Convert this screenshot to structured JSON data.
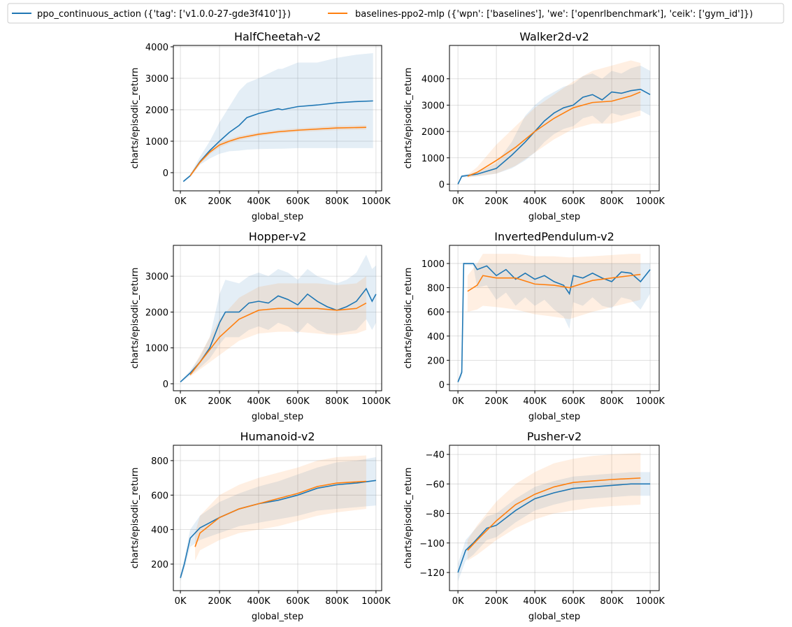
{
  "colors": {
    "ppo": "#1f77b4",
    "baselines": "#ff7f0e"
  },
  "legend": {
    "placement": "top",
    "items": [
      {
        "label": "ppo_continuous_action ({'tag': ['v1.0.0-27-gde3f410']})",
        "color": "#1f77b4"
      },
      {
        "label": "baselines-ppo2-mlp ({'wpn': ['baselines'], 'we': ['openrlbenchmark'], 'ceik': ['gym_id']})",
        "color": "#ff7f0e"
      }
    ]
  },
  "chart_data": [
    {
      "type": "line",
      "title": "HalfCheetah-v2",
      "xlabel": "global_step",
      "ylabel": "charts/episodic_return",
      "grid": true,
      "xlim": [
        -36000,
        1029000
      ],
      "ylim": [
        -578,
        4044
      ],
      "xticks": [
        0,
        200000,
        400000,
        600000,
        800000,
        1000000
      ],
      "xtick_labels": [
        "0K",
        "200K",
        "400K",
        "600K",
        "800K",
        "1000K"
      ],
      "yticks": [
        0,
        1000,
        2000,
        3000,
        4000
      ],
      "ytick_labels": [
        "0",
        "1000",
        "2000",
        "3000",
        "4000"
      ],
      "series": [
        {
          "name": "ppo_continuous_action",
          "x": [
            15000,
            50000,
            100000,
            150000,
            200000,
            250000,
            300000,
            340000,
            400000,
            500000,
            520000,
            600000,
            700000,
            800000,
            900000,
            985000
          ],
          "mean": [
            -280,
            -100,
            350,
            700,
            1000,
            1280,
            1500,
            1750,
            1880,
            2030,
            2000,
            2100,
            2150,
            2220,
            2260,
            2280
          ],
          "lower": [
            -320,
            -140,
            250,
            450,
            600,
            680,
            700,
            730,
            750,
            760,
            760,
            780,
            780,
            780,
            780,
            780
          ],
          "upper": [
            -250,
            -60,
            500,
            1000,
            1600,
            2100,
            2600,
            2850,
            3000,
            3300,
            3300,
            3500,
            3500,
            3650,
            3750,
            3800
          ]
        },
        {
          "name": "baselines-ppo2-mlp",
          "x": [
            50000,
            100000,
            150000,
            200000,
            250000,
            300000,
            400000,
            500000,
            600000,
            800000,
            950000
          ],
          "mean": [
            -100,
            330,
            650,
            880,
            1000,
            1100,
            1220,
            1300,
            1350,
            1420,
            1440
          ],
          "lower": [
            -150,
            270,
            580,
            800,
            930,
            1030,
            1160,
            1240,
            1290,
            1350,
            1370
          ],
          "upper": [
            -50,
            390,
            720,
            960,
            1070,
            1170,
            1280,
            1360,
            1410,
            1490,
            1510
          ]
        }
      ]
    },
    {
      "type": "line",
      "title": "Walker2d-v2",
      "xlabel": "global_step",
      "ylabel": "charts/episodic_return",
      "grid": true,
      "xlim": [
        -44000,
        1047000
      ],
      "ylim": [
        -253,
        5266
      ],
      "xticks": [
        0,
        200000,
        400000,
        600000,
        800000,
        1000000
      ],
      "xtick_labels": [
        "0K",
        "200K",
        "400K",
        "600K",
        "800K",
        "1000K"
      ],
      "yticks": [
        0,
        1000,
        2000,
        3000,
        4000
      ],
      "ytick_labels": [
        "0",
        "1000",
        "2000",
        "3000",
        "4000"
      ],
      "series": [
        {
          "name": "ppo_continuous_action",
          "x": [
            0,
            20000,
            100000,
            200000,
            280000,
            350000,
            400000,
            450000,
            500000,
            550000,
            600000,
            650000,
            700000,
            750000,
            800000,
            850000,
            900000,
            950000,
            1000000
          ],
          "mean": [
            0,
            300,
            380,
            600,
            1100,
            1600,
            2000,
            2400,
            2700,
            2900,
            3000,
            3300,
            3400,
            3200,
            3500,
            3450,
            3550,
            3600,
            3400
          ],
          "lower": [
            0,
            250,
            300,
            400,
            600,
            900,
            1200,
            1600,
            1900,
            2100,
            2200,
            2500,
            2600,
            2300,
            2700,
            2600,
            2700,
            2800,
            2600
          ],
          "upper": [
            0,
            350,
            450,
            800,
            1600,
            2600,
            3000,
            3300,
            3500,
            3700,
            3800,
            4100,
            4200,
            4000,
            4300,
            4200,
            4400,
            4500,
            4300
          ]
        },
        {
          "name": "baselines-ppo2-mlp",
          "x": [
            50000,
            100000,
            200000,
            300000,
            400000,
            500000,
            600000,
            700000,
            800000,
            900000,
            950000
          ],
          "mean": [
            300,
            450,
            900,
            1400,
            2000,
            2500,
            2900,
            3100,
            3150,
            3350,
            3500
          ],
          "lower": [
            250,
            300,
            400,
            700,
            1200,
            1700,
            2100,
            2300,
            2300,
            2500,
            2600
          ],
          "upper": [
            350,
            650,
            1500,
            2200,
            2900,
            3400,
            3900,
            4300,
            4500,
            4700,
            4600
          ]
        }
      ]
    },
    {
      "type": "line",
      "title": "Hopper-v2",
      "xlabel": "global_step",
      "ylabel": "charts/episodic_return",
      "grid": true,
      "xlim": [
        -36000,
        1029000
      ],
      "ylim": [
        -195,
        3860
      ],
      "xticks": [
        0,
        200000,
        400000,
        600000,
        800000,
        1000000
      ],
      "xtick_labels": [
        "0K",
        "200K",
        "400K",
        "600K",
        "800K",
        "1000K"
      ],
      "yticks": [
        0,
        1000,
        2000,
        3000
      ],
      "ytick_labels": [
        "0",
        "1000",
        "2000",
        "3000"
      ],
      "series": [
        {
          "name": "ppo_continuous_action",
          "x": [
            0,
            50000,
            100000,
            150000,
            200000,
            230000,
            300000,
            350000,
            400000,
            450000,
            500000,
            550000,
            600000,
            650000,
            700000,
            750000,
            800000,
            850000,
            900000,
            950000,
            980000,
            1000000
          ],
          "mean": [
            50,
            300,
            600,
            1000,
            1700,
            2000,
            2000,
            2250,
            2300,
            2250,
            2450,
            2350,
            2200,
            2500,
            2300,
            2150,
            2050,
            2150,
            2300,
            2650,
            2300,
            2500
          ],
          "lower": [
            30,
            230,
            450,
            700,
            1100,
            1300,
            1300,
            1500,
            1600,
            1500,
            1700,
            1600,
            1400,
            1700,
            1500,
            1400,
            1400,
            1450,
            1500,
            1800,
            1500,
            1700
          ],
          "upper": [
            70,
            370,
            750,
            1300,
            2500,
            2900,
            2800,
            3000,
            3100,
            3000,
            3200,
            3100,
            2900,
            3200,
            3000,
            2900,
            2800,
            2900,
            3100,
            3600,
            3200,
            3300
          ]
        },
        {
          "name": "baselines-ppo2-mlp",
          "x": [
            50000,
            100000,
            200000,
            300000,
            400000,
            500000,
            600000,
            700000,
            800000,
            900000,
            950000
          ],
          "mean": [
            250,
            600,
            1300,
            1800,
            2050,
            2100,
            2100,
            2100,
            2050,
            2100,
            2250
          ],
          "lower": [
            200,
            400,
            800,
            1200,
            1400,
            1450,
            1450,
            1400,
            1350,
            1400,
            1500
          ],
          "upper": [
            300,
            800,
            1800,
            2400,
            2700,
            2800,
            2800,
            2800,
            2750,
            2800,
            3000
          ]
        }
      ]
    },
    {
      "type": "line",
      "title": "InvertedPendulum-v2",
      "xlabel": "global_step",
      "ylabel": "charts/episodic_return",
      "grid": true,
      "xlim": [
        -44000,
        1047000
      ],
      "ylim": [
        -52,
        1150
      ],
      "xticks": [
        0,
        200000,
        400000,
        600000,
        800000,
        1000000
      ],
      "xtick_labels": [
        "0K",
        "200K",
        "400K",
        "600K",
        "800K",
        "1000K"
      ],
      "yticks": [
        0,
        200,
        400,
        600,
        800,
        1000
      ],
      "ytick_labels": [
        "0",
        "200",
        "400",
        "600",
        "800",
        "1000"
      ],
      "series": [
        {
          "name": "ppo_continuous_action",
          "x": [
            0,
            20000,
            30000,
            80000,
            100000,
            150000,
            200000,
            250000,
            300000,
            350000,
            400000,
            450000,
            500000,
            550000,
            580000,
            600000,
            650000,
            700000,
            750000,
            800000,
            850000,
            900000,
            950000,
            1000000
          ],
          "mean": [
            20,
            100,
            1000,
            1000,
            950,
            980,
            900,
            950,
            870,
            920,
            870,
            900,
            850,
            820,
            750,
            900,
            880,
            920,
            880,
            850,
            930,
            920,
            850,
            950
          ],
          "lower": [
            10,
            60,
            990,
            980,
            800,
            820,
            700,
            760,
            650,
            720,
            650,
            700,
            620,
            560,
            460,
            680,
            650,
            720,
            650,
            630,
            720,
            700,
            620,
            750
          ],
          "upper": [
            30,
            140,
            1000,
            1000,
            1000,
            1000,
            1000,
            1000,
            1000,
            1000,
            1000,
            1000,
            1000,
            1000,
            1000,
            1000,
            1000,
            1000,
            1000,
            1000,
            1000,
            1000,
            1000,
            1000
          ]
        },
        {
          "name": "baselines-ppo2-mlp",
          "x": [
            50000,
            100000,
            130000,
            200000,
            300000,
            400000,
            500000,
            580000,
            700000,
            800000,
            900000,
            950000
          ],
          "mean": [
            770,
            820,
            900,
            880,
            880,
            830,
            820,
            800,
            860,
            880,
            900,
            910
          ],
          "lower": [
            600,
            620,
            650,
            640,
            620,
            580,
            560,
            540,
            600,
            640,
            680,
            700
          ],
          "upper": [
            900,
            1000,
            1080,
            1080,
            1080,
            1060,
            1060,
            1050,
            1060,
            1070,
            1080,
            1080
          ]
        }
      ]
    },
    {
      "type": "line",
      "title": "Humanoid-v2",
      "xlabel": "global_step",
      "ylabel": "charts/episodic_return",
      "grid": true,
      "xlim": [
        -36000,
        1029000
      ],
      "ylim": [
        46,
        889
      ],
      "xticks": [
        0,
        200000,
        400000,
        600000,
        800000,
        1000000
      ],
      "xtick_labels": [
        "0K",
        "200K",
        "400K",
        "600K",
        "800K",
        "1000K"
      ],
      "yticks": [
        200,
        400,
        600,
        800
      ],
      "ytick_labels": [
        "200",
        "400",
        "600",
        "800"
      ],
      "series": [
        {
          "name": "ppo_continuous_action",
          "x": [
            0,
            20000,
            50000,
            100000,
            150000,
            200000,
            300000,
            400000,
            500000,
            600000,
            700000,
            800000,
            900000,
            1000000
          ],
          "mean": [
            120,
            200,
            350,
            410,
            440,
            470,
            520,
            550,
            570,
            600,
            640,
            660,
            670,
            685
          ],
          "lower": [
            100,
            170,
            300,
            340,
            360,
            380,
            420,
            440,
            460,
            480,
            510,
            520,
            530,
            540
          ],
          "upper": [
            140,
            230,
            400,
            480,
            520,
            560,
            610,
            650,
            680,
            720,
            760,
            790,
            800,
            820
          ]
        },
        {
          "name": "baselines-ppo2-mlp",
          "x": [
            75000,
            100000,
            200000,
            300000,
            400000,
            500000,
            600000,
            700000,
            800000,
            950000
          ],
          "mean": [
            300,
            380,
            470,
            520,
            550,
            580,
            610,
            650,
            670,
            680
          ],
          "lower": [
            220,
            280,
            340,
            380,
            400,
            420,
            450,
            480,
            500,
            520
          ],
          "upper": [
            380,
            480,
            600,
            660,
            700,
            730,
            760,
            800,
            820,
            830
          ]
        }
      ]
    },
    {
      "type": "line",
      "title": "Pusher-v2",
      "xlabel": "global_step",
      "ylabel": "charts/episodic_return",
      "grid": true,
      "xlim": [
        -44000,
        1047000
      ],
      "ylim": [
        -132.3,
        -33.8
      ],
      "xticks": [
        0,
        200000,
        400000,
        600000,
        800000,
        1000000
      ],
      "xtick_labels": [
        "0K",
        "200K",
        "400K",
        "600K",
        "800K",
        "1000K"
      ],
      "yticks": [
        -120,
        -100,
        -80,
        -60,
        -40
      ],
      "ytick_labels": [
        "−120",
        "−100",
        "−80",
        "−60",
        "−40"
      ],
      "series": [
        {
          "name": "ppo_continuous_action",
          "x": [
            0,
            40000,
            80000,
            150000,
            200000,
            300000,
            400000,
            500000,
            600000,
            700000,
            800000,
            900000,
            1000000
          ],
          "mean": [
            -120,
            -105,
            -100,
            -90,
            -88,
            -78,
            -70,
            -66,
            -63,
            -62,
            -61,
            -60,
            -60
          ],
          "lower": [
            -126,
            -112,
            -108,
            -98,
            -96,
            -86,
            -78,
            -74,
            -71,
            -70,
            -69,
            -68,
            -68
          ],
          "upper": [
            -114,
            -98,
            -92,
            -82,
            -80,
            -70,
            -62,
            -58,
            -55,
            -54,
            -53,
            -52,
            -52
          ]
        },
        {
          "name": "baselines-ppo2-mlp",
          "x": [
            50000,
            100000,
            200000,
            300000,
            400000,
            500000,
            600000,
            700000,
            800000,
            950000
          ],
          "mean": [
            -105,
            -98,
            -85,
            -74,
            -67,
            -62,
            -59,
            -58,
            -57,
            -56
          ],
          "lower": [
            -112,
            -108,
            -98,
            -90,
            -84,
            -80,
            -78,
            -76,
            -75,
            -74
          ],
          "upper": [
            -98,
            -88,
            -72,
            -60,
            -52,
            -46,
            -43,
            -41,
            -40,
            -39
          ]
        }
      ]
    }
  ]
}
